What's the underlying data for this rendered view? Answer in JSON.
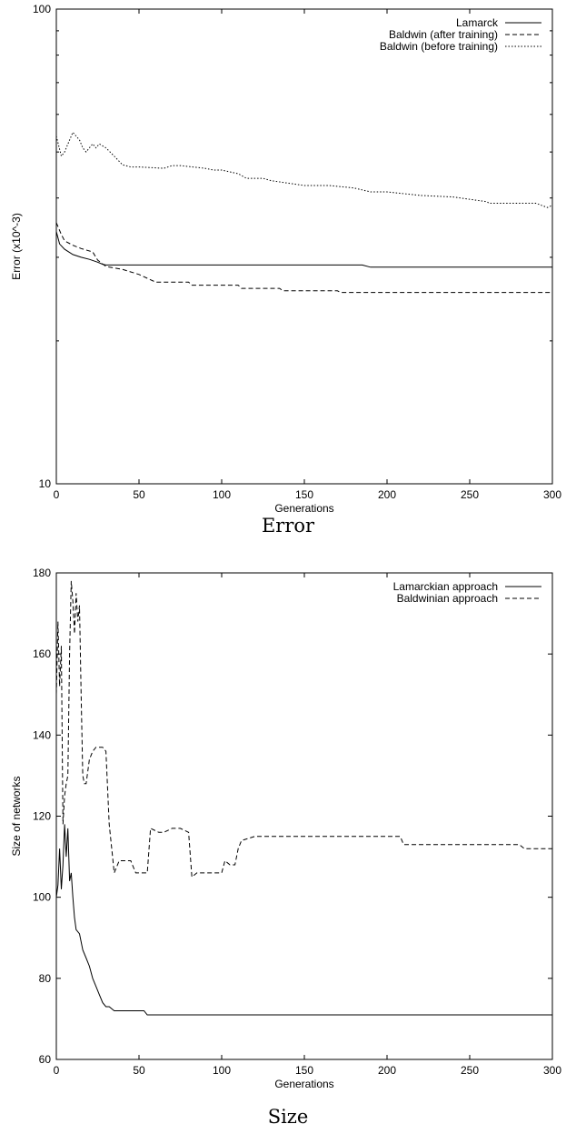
{
  "chart_data": [
    {
      "type": "line",
      "caption": "Error",
      "xlabel": "Generations",
      "ylabel": "Error (x10^-3)",
      "xlim": [
        0,
        300
      ],
      "ylim": [
        10,
        100
      ],
      "y_scale": "log",
      "grid": false,
      "legend_position": "top-right",
      "x_ticks": [
        0,
        50,
        100,
        150,
        200,
        250,
        300
      ],
      "y_ticks": [
        10,
        100
      ],
      "series": [
        {
          "name": "Lamarck",
          "dash": "solid",
          "x": [
            0,
            2,
            5,
            10,
            15,
            20,
            25,
            28,
            30,
            50,
            100,
            150,
            185,
            190,
            300
          ],
          "y": [
            34.0,
            32.0,
            31.2,
            30.4,
            30.0,
            29.7,
            29.3,
            29.0,
            28.9,
            28.9,
            28.9,
            28.9,
            28.9,
            28.6,
            28.6
          ]
        },
        {
          "name": "Baldwin (after training)",
          "dash": "dashed",
          "x": [
            0,
            3,
            5,
            10,
            15,
            22,
            25,
            30,
            40,
            50,
            55,
            60,
            80,
            82,
            110,
            112,
            135,
            137,
            170,
            172,
            300
          ],
          "y": [
            35.5,
            33.5,
            32.5,
            31.8,
            31.3,
            30.8,
            29.6,
            28.7,
            28.3,
            27.6,
            27.1,
            26.6,
            26.6,
            26.2,
            26.2,
            25.8,
            25.8,
            25.5,
            25.5,
            25.3,
            25.3
          ]
        },
        {
          "name": "Baldwin (before training)",
          "dash": "dotted",
          "x": [
            0,
            3,
            5,
            8,
            10,
            12,
            14,
            16,
            18,
            20,
            22,
            24,
            26,
            30,
            35,
            40,
            45,
            50,
            65,
            70,
            75,
            90,
            95,
            100,
            110,
            115,
            125,
            130,
            150,
            165,
            180,
            190,
            200,
            220,
            240,
            260,
            262,
            290,
            297,
            300
          ],
          "y": [
            54,
            49,
            50,
            53,
            55,
            54,
            53,
            51,
            50,
            51,
            52,
            51,
            52,
            51,
            49,
            47,
            46.5,
            46.5,
            46.2,
            46.8,
            46.8,
            46.2,
            45.8,
            45.8,
            45.0,
            44.0,
            44.0,
            43.5,
            42.5,
            42.5,
            42.0,
            41.2,
            41.2,
            40.5,
            40.2,
            39.3,
            39.0,
            39.0,
            38.2,
            38.6
          ]
        }
      ]
    },
    {
      "type": "line",
      "caption": "Size",
      "xlabel": "Generations",
      "ylabel": "Size of networks",
      "xlim": [
        0,
        300
      ],
      "ylim": [
        60,
        180
      ],
      "grid": false,
      "legend_position": "top-right",
      "x_ticks": [
        0,
        50,
        100,
        150,
        200,
        250,
        300
      ],
      "y_ticks": [
        60,
        80,
        100,
        120,
        140,
        160,
        180
      ],
      "series": [
        {
          "name": "Lamarckian approach",
          "dash": "solid",
          "x": [
            0,
            1,
            2,
            3,
            4,
            5,
            6,
            7,
            8,
            9,
            10,
            11,
            12,
            14,
            16,
            18,
            20,
            22,
            24,
            26,
            28,
            30,
            32,
            35,
            40,
            45,
            50,
            53,
            55,
            60,
            100,
            150,
            200,
            250,
            300
          ],
          "y": [
            100,
            103,
            112,
            102,
            108,
            118,
            110,
            117,
            104,
            106,
            100,
            95,
            92,
            91,
            87,
            85,
            83,
            80,
            78,
            76,
            74,
            73,
            73,
            72,
            72,
            72,
            72,
            72,
            71,
            71,
            71,
            71,
            71,
            71,
            71
          ]
        },
        {
          "name": "Baldwinian approach",
          "dash": "dashed",
          "x": [
            0,
            1,
            2,
            3,
            4,
            5,
            6,
            7,
            8,
            9,
            10,
            11,
            12,
            13,
            14,
            15,
            16,
            17,
            18,
            20,
            22,
            24,
            26,
            28,
            30,
            32,
            34,
            35,
            38,
            45,
            48,
            55,
            57,
            62,
            65,
            70,
            75,
            80,
            82,
            85,
            100,
            102,
            105,
            108,
            110,
            112,
            120,
            150,
            200,
            208,
            210,
            250,
            280,
            283,
            290,
            300
          ],
          "y": [
            150,
            168,
            152,
            162,
            118,
            125,
            128,
            130,
            160,
            178,
            173,
            165,
            175,
            168,
            172,
            150,
            130,
            128,
            128,
            134,
            136,
            137,
            137,
            137,
            136,
            118,
            110,
            106,
            109,
            109,
            106,
            106,
            117,
            116,
            116,
            117,
            117,
            116,
            105,
            106,
            106,
            109,
            108,
            108,
            112,
            114,
            115,
            115,
            115,
            115,
            113,
            113,
            113,
            112,
            112,
            112
          ]
        }
      ]
    }
  ]
}
